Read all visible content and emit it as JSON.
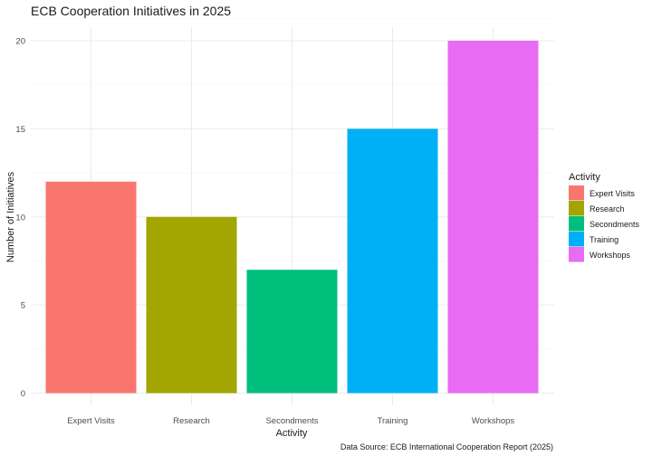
{
  "chart_data": {
    "type": "bar",
    "title": "ECB Cooperation Initiatives in 2025",
    "xlabel": "Activity",
    "ylabel": "Number of Initiatives",
    "categories": [
      "Expert Visits",
      "Research",
      "Secondments",
      "Training",
      "Workshops"
    ],
    "values": [
      12,
      10,
      7,
      15,
      20
    ],
    "colors": [
      "#F8766D",
      "#A3A500",
      "#00BF7D",
      "#00B0F6",
      "#E76BF3"
    ],
    "ylim": [
      0,
      20
    ],
    "yticks": [
      0,
      5,
      10,
      15,
      20
    ],
    "grid": true,
    "legend": {
      "title": "Activity",
      "position": "right",
      "entries": [
        "Expert Visits",
        "Research",
        "Secondments",
        "Training",
        "Workshops"
      ]
    },
    "caption": "Data Source: ECB International Cooperation Report (2025)"
  }
}
